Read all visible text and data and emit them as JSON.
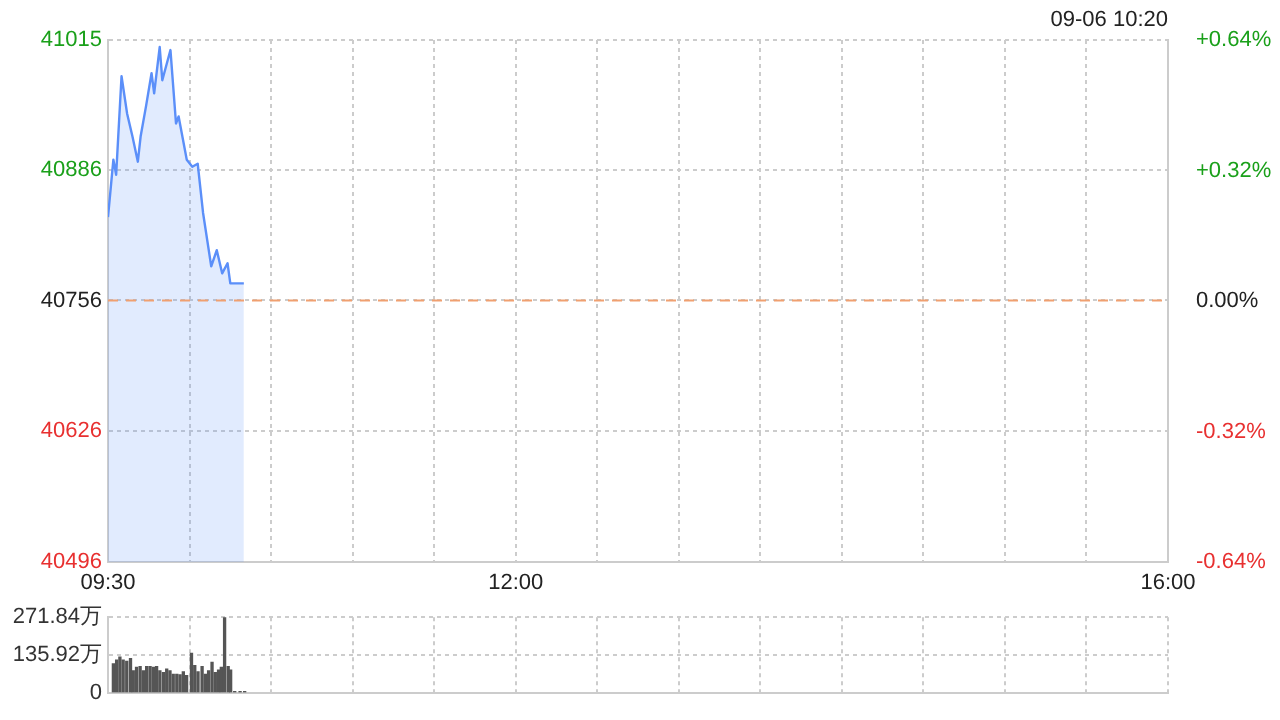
{
  "chart_data": [
    {
      "type": "area",
      "annotations": [
        "09-06 10:20"
      ],
      "x": [
        9.5,
        9.533,
        9.55,
        9.583,
        9.617,
        9.65,
        9.683,
        9.7,
        9.733,
        9.767,
        9.783,
        9.817,
        9.833,
        9.883,
        9.917,
        9.933,
        9.983,
        10.017,
        10.05,
        10.083,
        10.133,
        10.167,
        10.2,
        10.233,
        10.25,
        10.267,
        10.333
      ],
      "series": [
        {
          "color": "#5b8ff9",
          "values": [
            40839,
            40896,
            40881,
            40979,
            40942,
            40919,
            40894,
            40919,
            40949,
            40982,
            40962,
            41008,
            40975,
            41005,
            40932,
            40939,
            40896,
            40889,
            40892,
            40843,
            40790,
            40806,
            40783,
            40793,
            40773,
            40773,
            40773
          ]
        }
      ],
      "xlim": [
        9.5,
        16
      ],
      "xticks": [
        {
          "value": 9.5,
          "label": "09:30"
        },
        {
          "value": 10,
          "label": null
        },
        {
          "value": 10.5,
          "label": null
        },
        {
          "value": 11,
          "label": null
        },
        {
          "value": 11.5,
          "label": null
        },
        {
          "value": 12,
          "label": "12:00"
        },
        {
          "value": 12.5,
          "label": null
        },
        {
          "value": 13,
          "label": null
        },
        {
          "value": 13.5,
          "label": null
        },
        {
          "value": 14,
          "label": null
        },
        {
          "value": 14.5,
          "label": null
        },
        {
          "value": 15,
          "label": null
        },
        {
          "value": 15.5,
          "label": null
        },
        {
          "value": 16,
          "label": "16:00"
        }
      ],
      "ylim": [
        40496,
        41015
      ],
      "yticks": [
        40496,
        40626,
        40756,
        40886,
        41015
      ],
      "y2lim": [
        -0.64,
        0.64
      ],
      "y2ticks": [
        {
          "value": -0.64,
          "label": "-0.64%"
        },
        {
          "value": -0.32,
          "label": "-0.32%"
        },
        {
          "value": 0,
          "label": "0.00%"
        },
        {
          "value": 0.32,
          "label": "+0.32%"
        },
        {
          "value": 0.64,
          "label": "+0.64%"
        }
      ],
      "ref_lines": [
        {
          "axis": "y",
          "value": 40756,
          "color": "#f0a070",
          "line_style": "dashed"
        }
      ],
      "grid": true
    },
    {
      "type": "bar",
      "x": [
        9.533,
        9.553,
        9.573,
        9.593,
        9.615,
        9.638,
        9.655,
        9.675,
        9.697,
        9.717,
        9.737,
        9.758,
        9.778,
        9.798,
        9.818,
        9.84,
        9.86,
        9.88,
        9.9,
        9.922,
        9.942,
        9.962,
        9.982,
        10.012,
        10.032,
        10.052,
        10.077,
        10.097,
        10.117,
        10.138,
        10.158,
        10.178,
        10.195,
        10.215,
        10.237,
        10.252,
        10.277,
        10.31,
        10.338
      ],
      "series": [
        {
          "color": "#555555",
          "values": [
            104,
            117,
            128,
            117,
            113,
            123,
            79,
            91,
            94,
            79,
            94,
            94,
            91,
            94,
            79,
            72,
            85,
            79,
            66,
            66,
            64,
            75,
            62,
            142,
            98,
            75,
            94,
            66,
            79,
            109,
            72,
            81,
            91,
            270,
            94,
            81,
            4,
            4,
            4
          ]
        }
      ],
      "xlim": [
        9.5,
        16
      ],
      "xticks": [
        {
          "value": 9.5,
          "label": null
        },
        {
          "value": 10,
          "label": null
        },
        {
          "value": 10.5,
          "label": null
        },
        {
          "value": 11,
          "label": null
        },
        {
          "value": 11.5,
          "label": null
        },
        {
          "value": 12,
          "label": null
        },
        {
          "value": 12.5,
          "label": null
        },
        {
          "value": 13,
          "label": null
        },
        {
          "value": 13.5,
          "label": null
        },
        {
          "value": 14,
          "label": null
        },
        {
          "value": 14.5,
          "label": null
        },
        {
          "value": 15,
          "label": null
        },
        {
          "value": 15.5,
          "label": null
        },
        {
          "value": 16,
          "label": null
        }
      ],
      "ylim": [
        0,
        271.84
      ],
      "yticks": [
        0,
        {
          "value": 135.92,
          "label": "135.92万"
        },
        {
          "value": 271.84,
          "label": "271.84万"
        }
      ],
      "tick_labels": "y",
      "grid": true
    }
  ]
}
